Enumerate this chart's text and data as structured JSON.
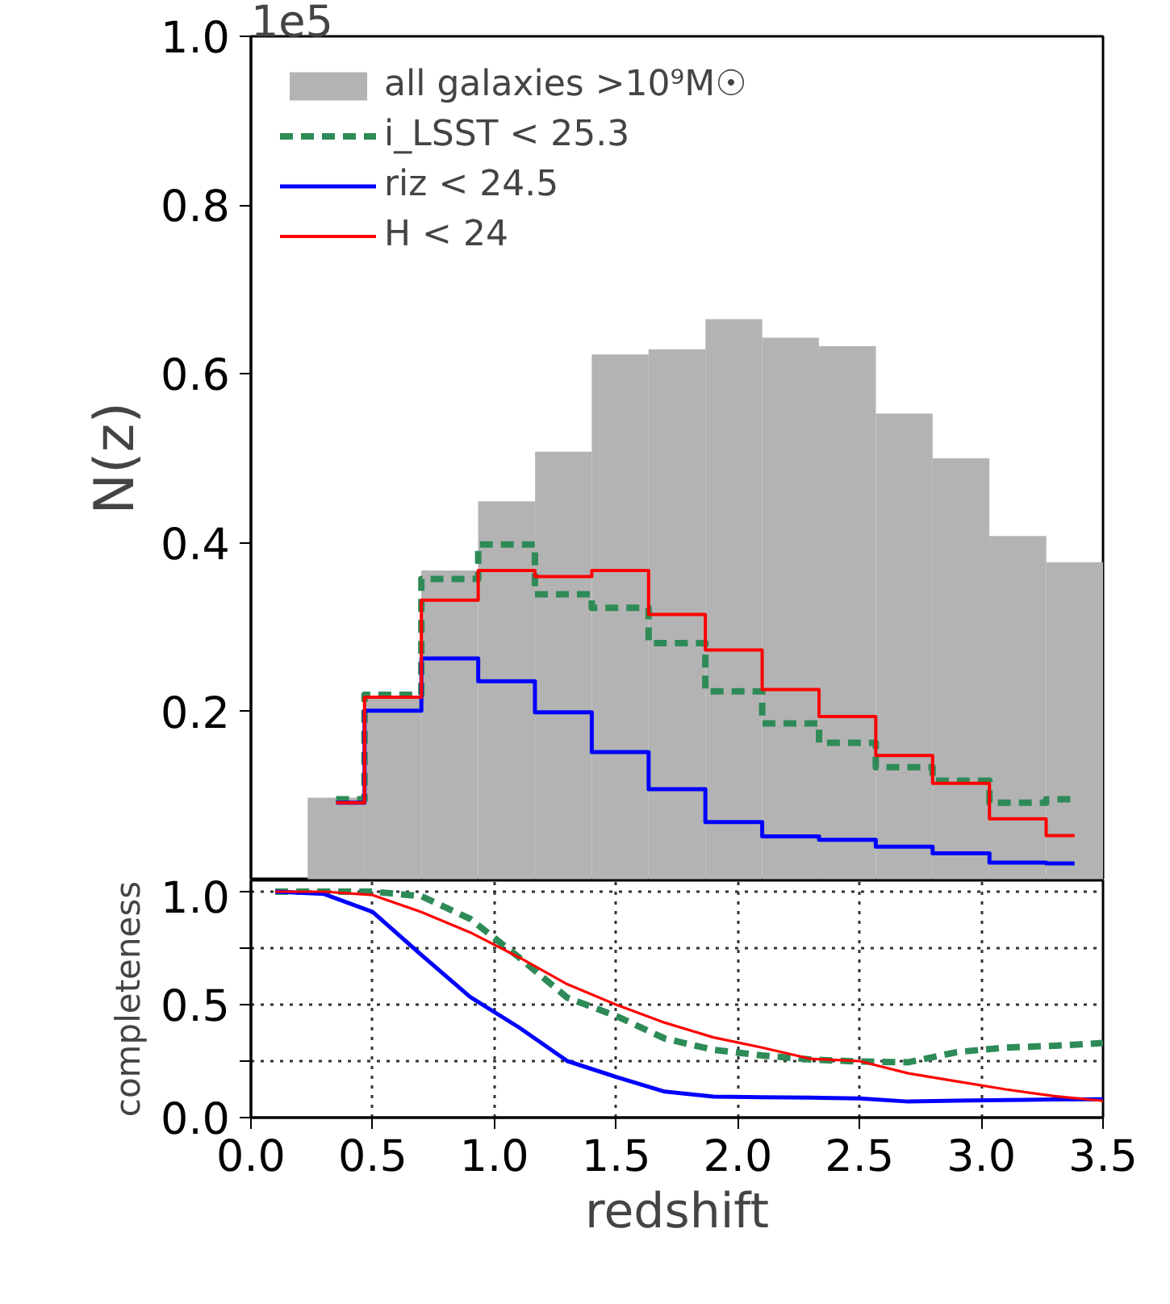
{
  "chart_data": [
    {
      "type": "histogram",
      "ylabel": "N(z)",
      "annotations": [
        "1e5"
      ],
      "bins": [
        0.233,
        0.467,
        0.7,
        0.933,
        1.167,
        1.4,
        1.633,
        1.867,
        2.1,
        2.333,
        2.567,
        2.8,
        3.033,
        3.267,
        3.5
      ],
      "series": [
        {
          "name": "all galaxies >10⁹M☉",
          "color": "#b3b3b3",
          "values": [
            0.098,
            0.217,
            0.367,
            0.449,
            0.508,
            0.623,
            0.629,
            0.665,
            0.643,
            0.633,
            0.553,
            0.5,
            0.408,
            0.377
          ]
        },
        {
          "name": "i_LSST < 25.3",
          "type": "step",
          "x": [
            0.35,
            0.583,
            0.817,
            1.05,
            1.283,
            1.517,
            1.75,
            1.983,
            2.217,
            2.45,
            2.683,
            2.917,
            3.15,
            3.383
          ],
          "line_style": "dashed",
          "color": "#2e8b57",
          "values": [
            0.096,
            0.22,
            0.357,
            0.398,
            0.339,
            0.323,
            0.281,
            0.224,
            0.186,
            0.163,
            0.134,
            0.118,
            0.092,
            0.096
          ]
        },
        {
          "name": "riz < 24.5",
          "type": "step",
          "x": [
            0.35,
            0.583,
            0.817,
            1.05,
            1.283,
            1.517,
            1.75,
            1.983,
            2.217,
            2.45,
            2.683,
            2.917,
            3.15,
            3.383
          ],
          "color": "#0000ff",
          "values": [
            0.092,
            0.201,
            0.263,
            0.236,
            0.199,
            0.152,
            0.108,
            0.069,
            0.052,
            0.048,
            0.04,
            0.032,
            0.021,
            0.02
          ]
        },
        {
          "name": "H < 24",
          "type": "step",
          "x": [
            0.35,
            0.583,
            0.817,
            1.05,
            1.283,
            1.517,
            1.75,
            1.983,
            2.217,
            2.45,
            2.683,
            2.917,
            3.15,
            3.383
          ],
          "color": "#ff0000",
          "values": [
            0.092,
            0.217,
            0.332,
            0.367,
            0.36,
            0.367,
            0.315,
            0.273,
            0.226,
            0.194,
            0.148,
            0.115,
            0.073,
            0.053
          ]
        }
      ],
      "xlim": [
        0,
        3.5
      ],
      "ylim": [
        0,
        1.0
      ],
      "yticks": [
        0.2,
        0.4,
        0.6,
        0.8,
        {
          "value": 1.0,
          "label": "1.0"
        }
      ],
      "tick_labels": "y",
      "legend": "top left"
    },
    {
      "type": "line",
      "xlabel": "redshift",
      "ylabel": "completeness",
      "x": [
        0.1,
        0.3,
        0.5,
        0.7,
        0.9,
        1.1,
        1.3,
        1.5,
        1.7,
        1.9,
        2.1,
        2.3,
        2.5,
        2.7,
        2.9,
        3.1,
        3.3,
        3.5
      ],
      "series": [
        {
          "color": "#2e8b57",
          "line_style": "dashed",
          "values": [
            1.0,
            1.0,
            1.0,
            0.98,
            0.88,
            0.71,
            0.53,
            0.45,
            0.35,
            0.3,
            0.275,
            0.257,
            0.248,
            0.245,
            0.29,
            0.31,
            0.318,
            0.33
          ]
        },
        {
          "color": "#0000ff",
          "values": [
            1.0,
            0.99,
            0.91,
            0.72,
            0.534,
            0.4,
            0.25,
            0.18,
            0.115,
            0.093,
            0.09,
            0.088,
            0.085,
            0.071,
            0.075,
            0.078,
            0.08,
            0.081
          ]
        },
        {
          "color": "#ff0000",
          "values": [
            1.0,
            1.0,
            0.985,
            0.91,
            0.82,
            0.71,
            0.59,
            0.5,
            0.42,
            0.355,
            0.31,
            0.26,
            0.25,
            0.196,
            0.16,
            0.125,
            0.095,
            0.074
          ]
        }
      ],
      "xlim": [
        0,
        3.5
      ],
      "ylim": [
        0,
        1.05
      ],
      "xticks": [
        {
          "value": 0,
          "label": "0.0"
        },
        0.5,
        {
          "value": 1.0,
          "label": "1.0"
        },
        1.5,
        {
          "value": 2.0,
          "label": "2.0"
        },
        2.5,
        {
          "value": 3.0,
          "label": "3.0"
        },
        3.5
      ],
      "yticks": [
        {
          "value": 0,
          "label": "0.0"
        },
        {
          "value": 0.25,
          "label": null
        },
        0.5,
        {
          "value": 0.75,
          "label": null
        },
        {
          "value": 1.0,
          "label": "1.0"
        }
      ],
      "grid": true,
      "legend": false
    }
  ]
}
